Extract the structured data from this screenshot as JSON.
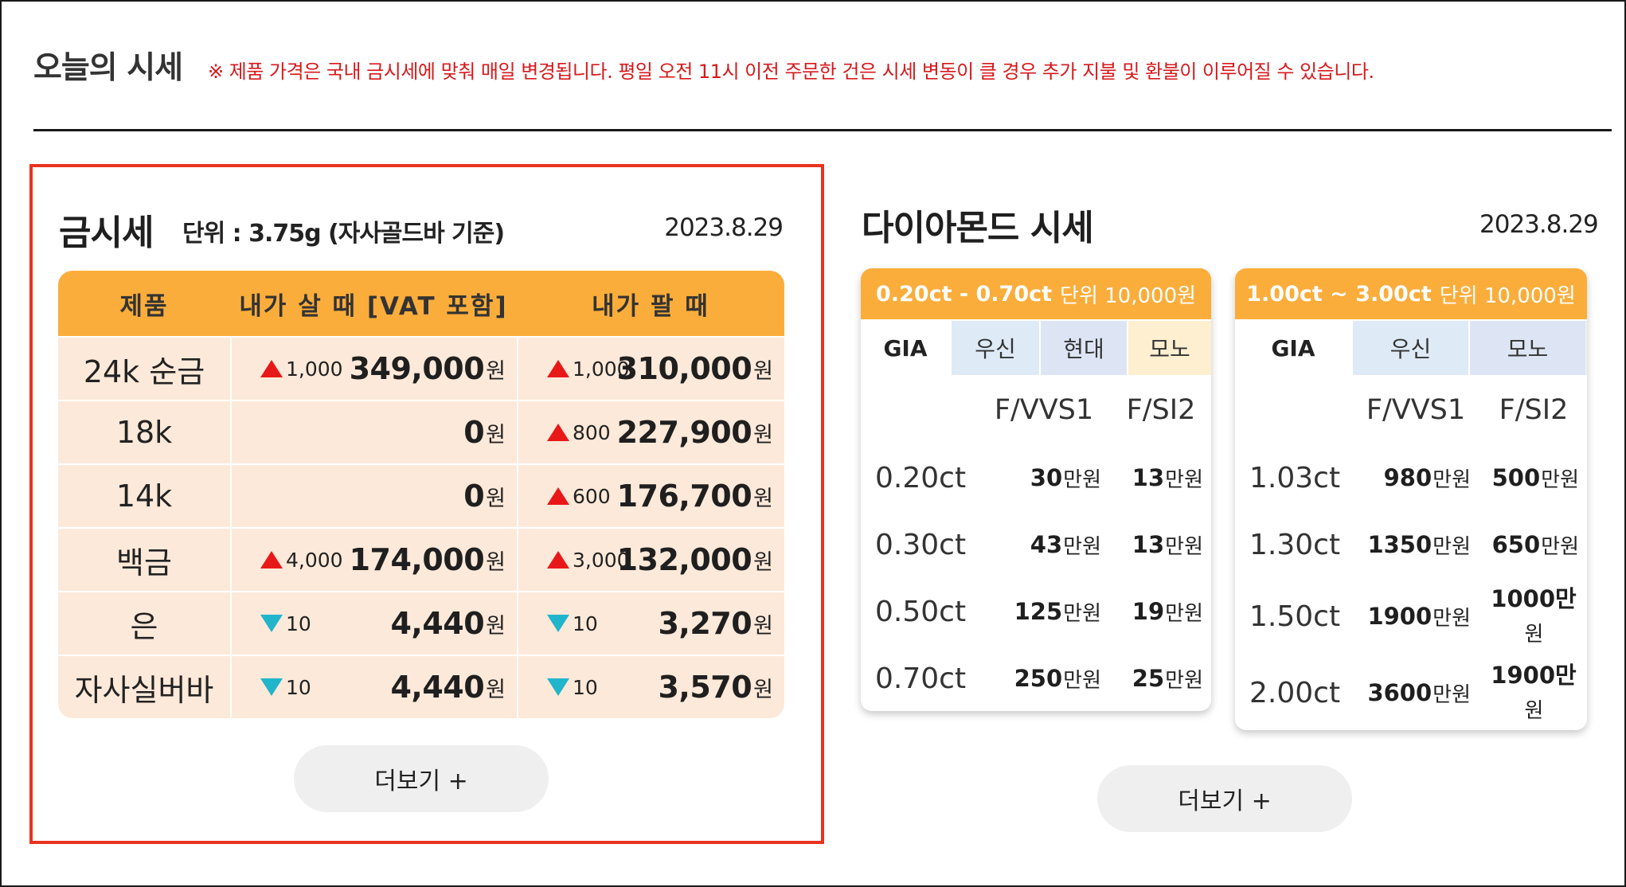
{
  "header": {
    "title": "오늘의 시세",
    "notice": "※ 제품 가격은 국내 금시세에 맞춰 매일 변경됩니다. 평일 오전 11시 이전 주문한 건은 시세 변동이 클 경우 추가 지불 및 환불이 이루어질 수 있습니다."
  },
  "gold": {
    "title": "금시세",
    "unit": "단위 : 3.75g (자사골드바 기준)",
    "date": "2023.8.29",
    "columns": [
      "제품",
      "내가 살 때 [VAT 포함]",
      "내가 팔 때"
    ],
    "won": "원",
    "rows": [
      {
        "product": "24k 순금",
        "buy_change": "1,000",
        "buy_dir": "up",
        "buy_price": "349,000",
        "sell_change": "1,000",
        "sell_dir": "up",
        "sell_price": "310,000"
      },
      {
        "product": "18k",
        "buy_change": "",
        "buy_dir": "",
        "buy_price": "0",
        "sell_change": "800",
        "sell_dir": "up",
        "sell_price": "227,900"
      },
      {
        "product": "14k",
        "buy_change": "",
        "buy_dir": "",
        "buy_price": "0",
        "sell_change": "600",
        "sell_dir": "up",
        "sell_price": "176,700"
      },
      {
        "product": "백금",
        "buy_change": "4,000",
        "buy_dir": "up",
        "buy_price": "174,000",
        "sell_change": "3,000",
        "sell_dir": "up",
        "sell_price": "132,000"
      },
      {
        "product": "은",
        "buy_change": "10",
        "buy_dir": "down",
        "buy_price": "4,440",
        "sell_change": "10",
        "sell_dir": "down",
        "sell_price": "3,270"
      },
      {
        "product": "자사실버바",
        "buy_change": "10",
        "buy_dir": "down",
        "buy_price": "4,440",
        "sell_change": "10",
        "sell_dir": "down",
        "sell_price": "3,570"
      }
    ],
    "more_label": "더보기 +"
  },
  "diamond": {
    "title": "다이아몬드 시세",
    "date": "2023.8.29",
    "man_won": "만원",
    "cards": [
      {
        "range": "0.20ct - 0.70ct",
        "unit": "단위 10,000원",
        "labels": [
          "GIA",
          "우신",
          "현대",
          "모노"
        ],
        "grades": [
          "F/VVS1",
          "F/SI2"
        ],
        "rows": [
          {
            "carat": "0.20ct",
            "vvs1": "30",
            "si2": "13"
          },
          {
            "carat": "0.30ct",
            "vvs1": "43",
            "si2": "13"
          },
          {
            "carat": "0.50ct",
            "vvs1": "125",
            "si2": "19"
          },
          {
            "carat": "0.70ct",
            "vvs1": "250",
            "si2": "25"
          }
        ]
      },
      {
        "range": "1.00ct ~ 3.00ct",
        "unit": "단위 10,000원",
        "labels": [
          "GIA",
          "우신",
          "모노"
        ],
        "grades": [
          "F/VVS1",
          "F/SI2"
        ],
        "rows": [
          {
            "carat": "1.03ct",
            "vvs1": "980",
            "si2": "500"
          },
          {
            "carat": "1.30ct",
            "vvs1": "1350",
            "si2": "650"
          },
          {
            "carat": "1.50ct",
            "vvs1": "1900",
            "si2": "1000만",
            "si2_tail": "원"
          },
          {
            "carat": "2.00ct",
            "vvs1": "3600",
            "si2": "1900만",
            "si2_tail": "원"
          }
        ]
      }
    ],
    "more_label": "더보기 +"
  }
}
